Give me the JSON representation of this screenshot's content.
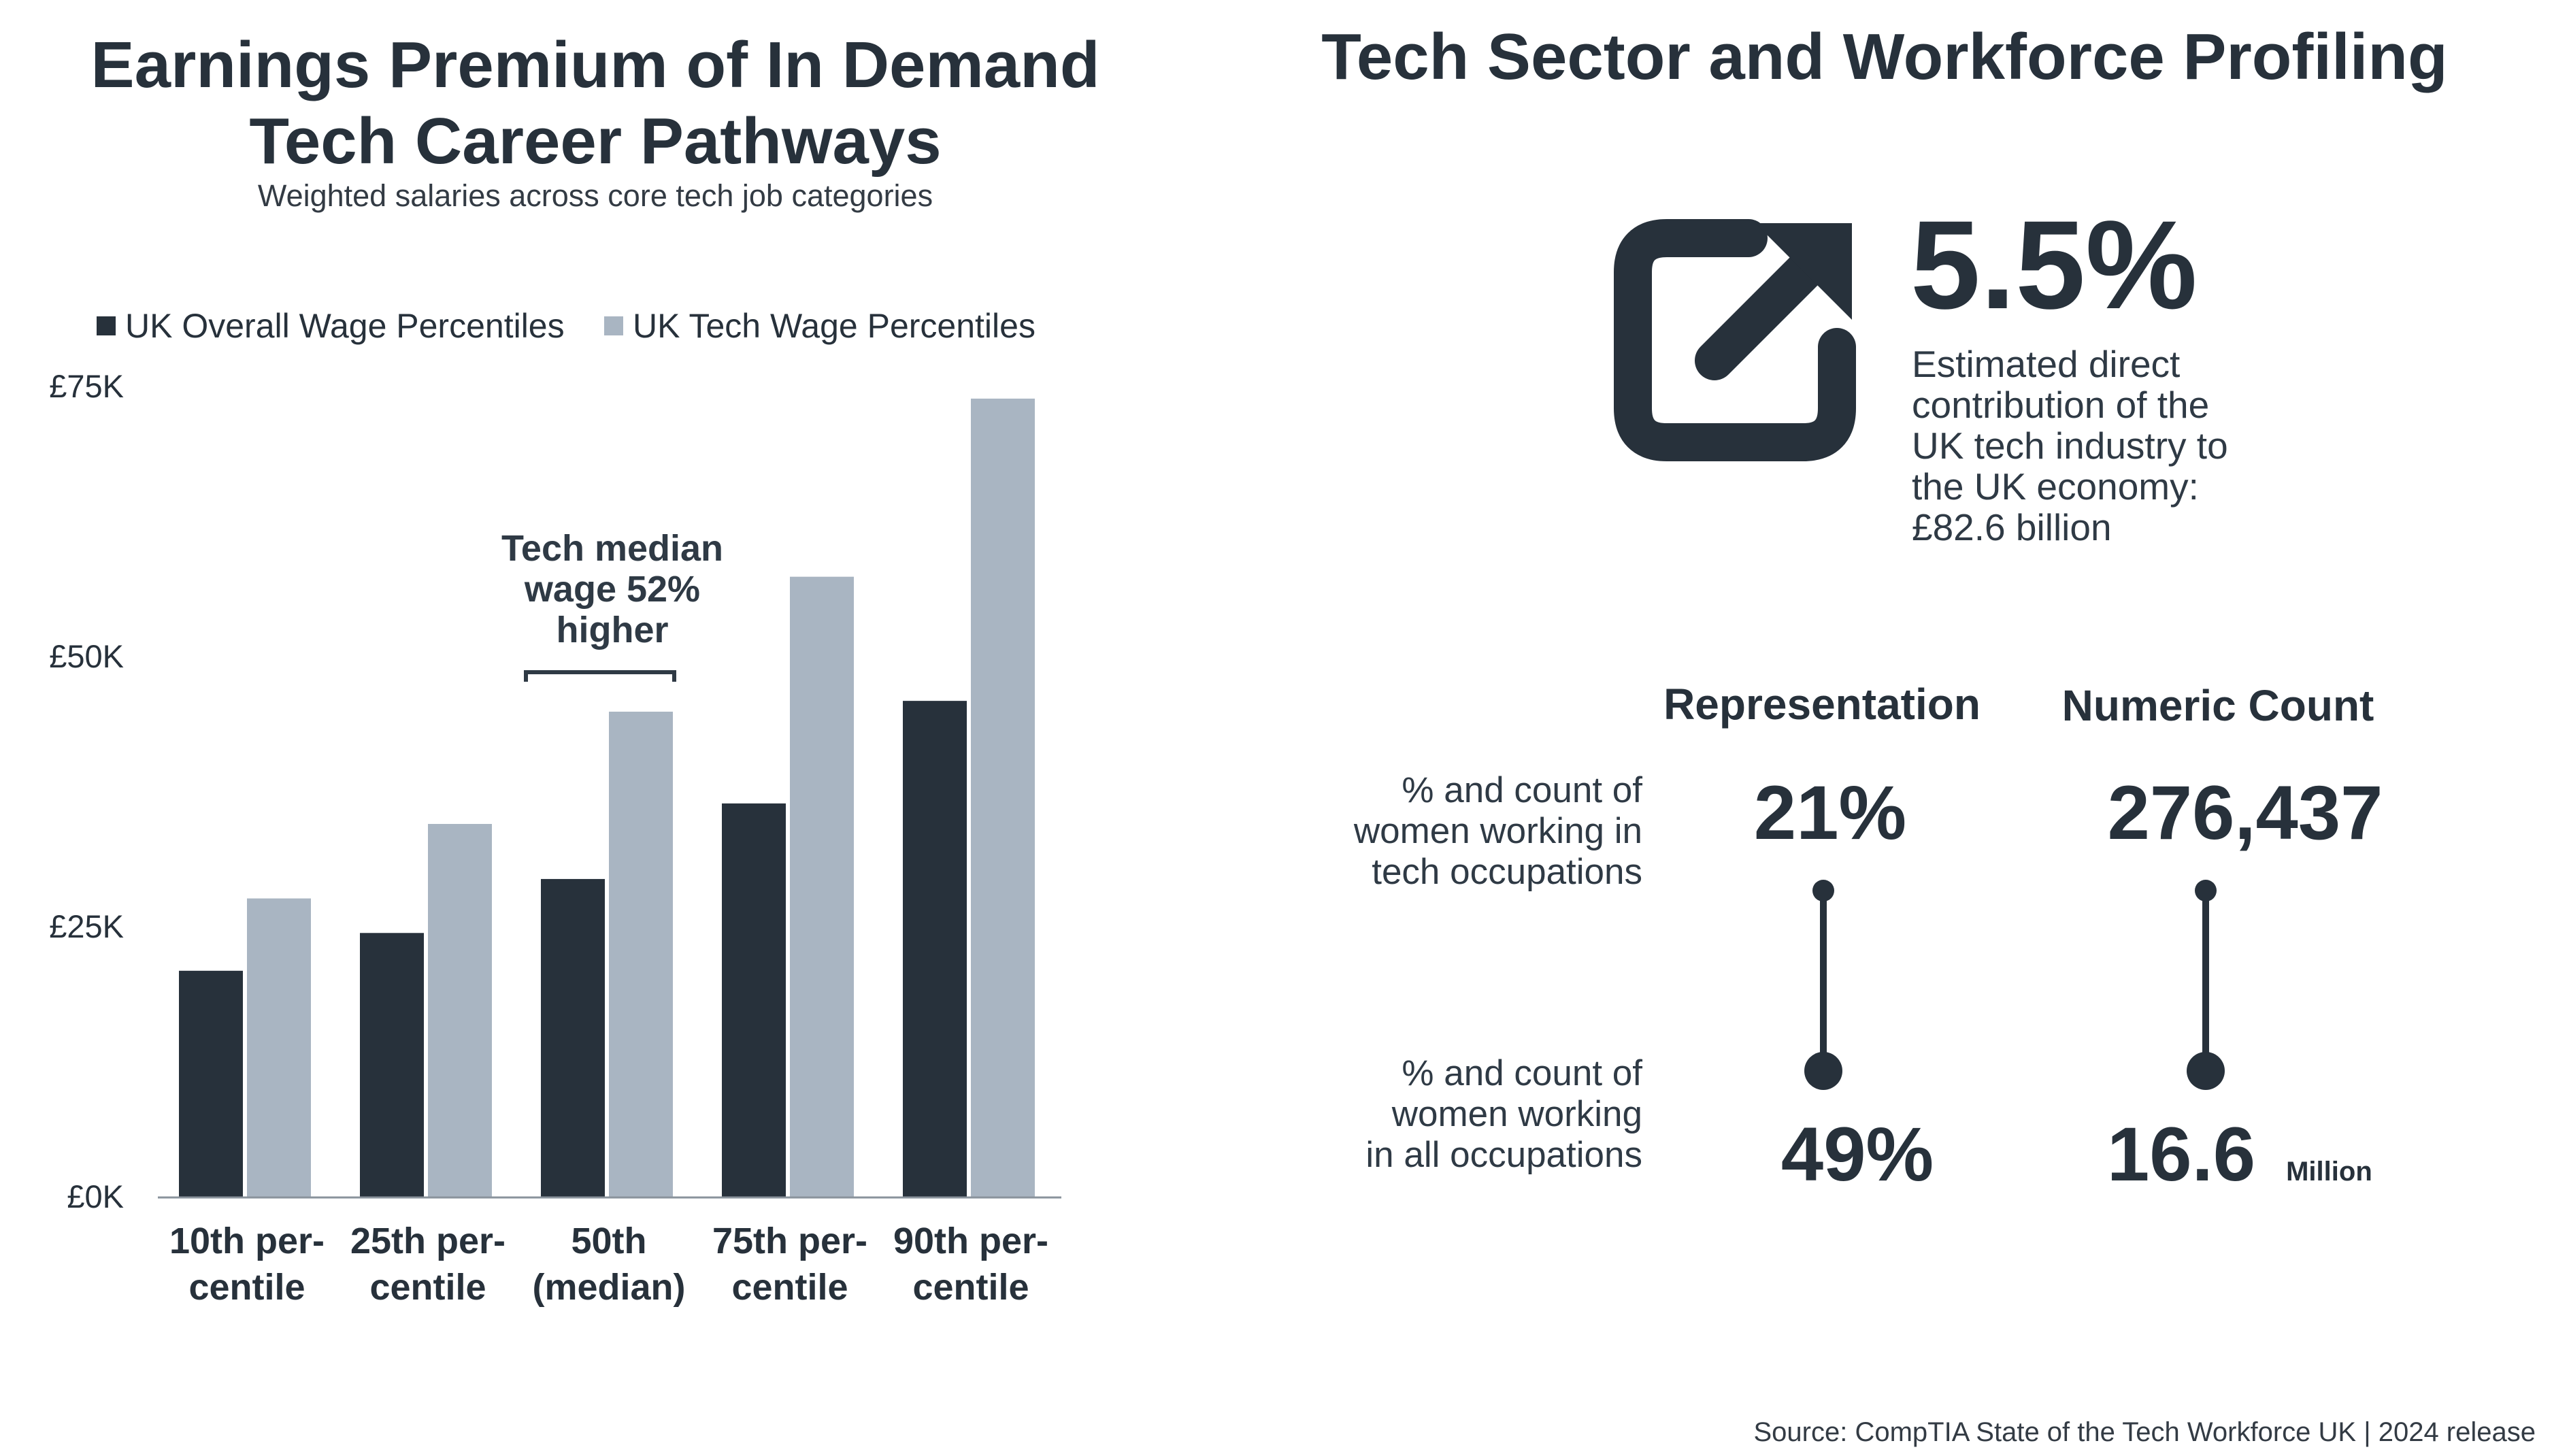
{
  "left": {
    "title_line1": "Earnings Premium of In Demand",
    "title_line2": "Tech Career Pathways",
    "subtitle": "Weighted salaries across core tech job categories",
    "annotation": [
      "Tech median",
      "wage 52%",
      "higher"
    ]
  },
  "right": {
    "title": "Tech Sector and Workforce Profiling",
    "headline_value": "5.5%",
    "headline_desc": [
      "Estimated direct",
      "contribution of the",
      "UK tech industry to",
      "the UK economy:",
      "£82.6 billion"
    ],
    "col_representation": "Representation",
    "col_count": "Numeric Count",
    "row1_label": [
      "% and count of",
      "women working in",
      "tech occupations"
    ],
    "row2_label": [
      "% and count of",
      "women working",
      "in all occupations"
    ],
    "row1_pct": "21%",
    "row1_count": "276,437",
    "row2_pct": "49%",
    "row2_count": "16.6",
    "row2_count_unit": "Million",
    "icon": "external-link-arrow-icon"
  },
  "source": "Source: CompTIA State of the Tech Workforce UK | 2024 release",
  "colors": {
    "dark": "#27313b",
    "light": "#a9b5c2"
  },
  "chart_data": {
    "type": "bar",
    "title": "Earnings Premium of In Demand Tech Career Pathways",
    "subtitle": "Weighted salaries across core tech job categories",
    "categories": [
      [
        "10th per-",
        "centile"
      ],
      [
        "25th per-",
        "centile"
      ],
      [
        "50th",
        "(median)"
      ],
      [
        "75th per-",
        "centile"
      ],
      [
        "90th per-",
        "centile"
      ]
    ],
    "series": [
      {
        "name": "UK Overall Wage Percentiles",
        "color": "#27313b",
        "values": [
          21000,
          24500,
          29500,
          36500,
          46000
        ]
      },
      {
        "name": "UK Tech Wage Percentiles",
        "color": "#a9b5c2",
        "values": [
          27700,
          34600,
          45000,
          57500,
          74000
        ]
      }
    ],
    "yticks": [
      "£0K",
      "£25K",
      "£50K",
      "£75K"
    ],
    "ylim": [
      0,
      75000
    ],
    "legend": "top",
    "grid": false
  }
}
